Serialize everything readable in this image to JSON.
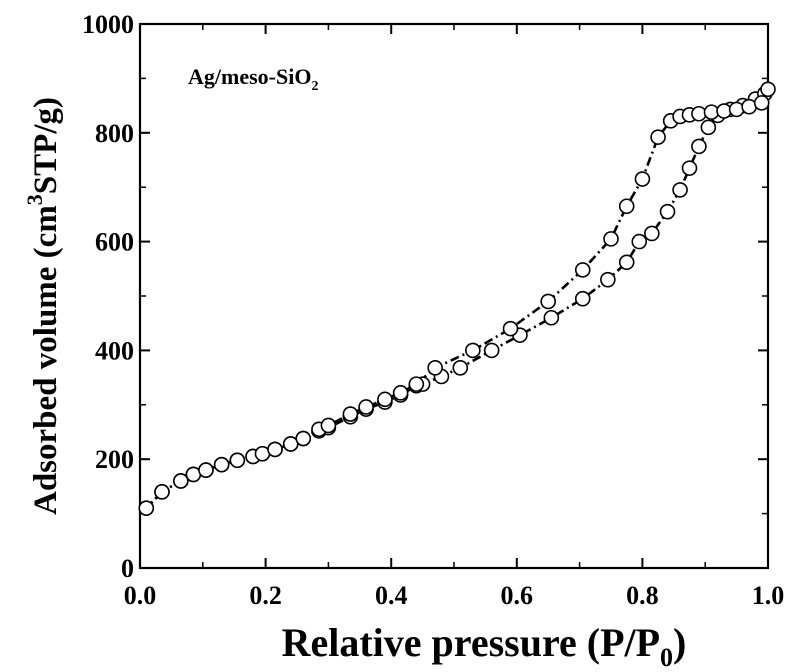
{
  "chart_data": {
    "type": "scatter",
    "title": "",
    "annotation": {
      "text": "Ag/meso-SiO",
      "subscript": "2"
    },
    "xlabel": {
      "text": "Relative pressure  (P/P",
      "subscript": "0",
      "suffix": ")"
    },
    "ylabel": {
      "prefix": "Adsorbed volume (cm",
      "superscript": "3",
      "suffix": "STP/g)"
    },
    "xlim": [
      0.0,
      1.0
    ],
    "ylim": [
      0,
      1000
    ],
    "x_ticks": [
      0.0,
      0.2,
      0.4,
      0.6,
      0.8,
      1.0
    ],
    "x_tick_labels": [
      "0.0",
      "0.2",
      "0.4",
      "0.6",
      "0.8",
      "1.0"
    ],
    "y_ticks": [
      0,
      200,
      400,
      600,
      800,
      1000
    ],
    "y_tick_labels": [
      "0",
      "200",
      "400",
      "600",
      "800",
      "1000"
    ],
    "x_minor_step": 0.1,
    "y_minor_step": 100,
    "grid": false,
    "series": [
      {
        "marker": "open-circle",
        "line": "dash-dot",
        "x": [
          0.01,
          0.035,
          0.065,
          0.085,
          0.105,
          0.13,
          0.155,
          0.18,
          0.195,
          0.215,
          0.24,
          0.26,
          0.285,
          0.3,
          0.335,
          0.36,
          0.39,
          0.415,
          0.44,
          0.45,
          0.48,
          0.51,
          0.56,
          0.605,
          0.655,
          0.705,
          0.745,
          0.775,
          0.795,
          0.815,
          0.84,
          0.86,
          0.875,
          0.89,
          0.905,
          0.92,
          0.94,
          0.96,
          0.98,
          0.995
        ],
        "y": [
          110,
          140,
          160,
          172,
          180,
          190,
          198,
          205,
          210,
          218,
          228,
          238,
          252,
          258,
          278,
          292,
          305,
          318,
          335,
          338,
          352,
          368,
          400,
          428,
          460,
          495,
          530,
          562,
          600,
          615,
          655,
          695,
          735,
          775,
          810,
          832,
          843,
          850,
          862,
          872
        ]
      },
      {
        "marker": "open-circle",
        "line": "dash-dot",
        "x": [
          0.01,
          0.035,
          0.065,
          0.085,
          0.105,
          0.13,
          0.155,
          0.18,
          0.195,
          0.215,
          0.24,
          0.26,
          0.285,
          0.3,
          0.335,
          0.36,
          0.39,
          0.415,
          0.44,
          0.47,
          0.53,
          0.59,
          0.65,
          0.705,
          0.75,
          0.775,
          0.8,
          0.825,
          0.845,
          0.86,
          0.875,
          0.89,
          0.91,
          0.93,
          0.95,
          0.97,
          0.99,
          1.0
        ],
        "y": [
          110,
          140,
          160,
          172,
          180,
          190,
          198,
          205,
          210,
          218,
          228,
          238,
          255,
          262,
          283,
          296,
          310,
          322,
          338,
          368,
          400,
          440,
          490,
          548,
          605,
          665,
          715,
          792,
          822,
          830,
          833,
          835,
          838,
          840,
          843,
          848,
          855,
          880
        ]
      }
    ]
  }
}
